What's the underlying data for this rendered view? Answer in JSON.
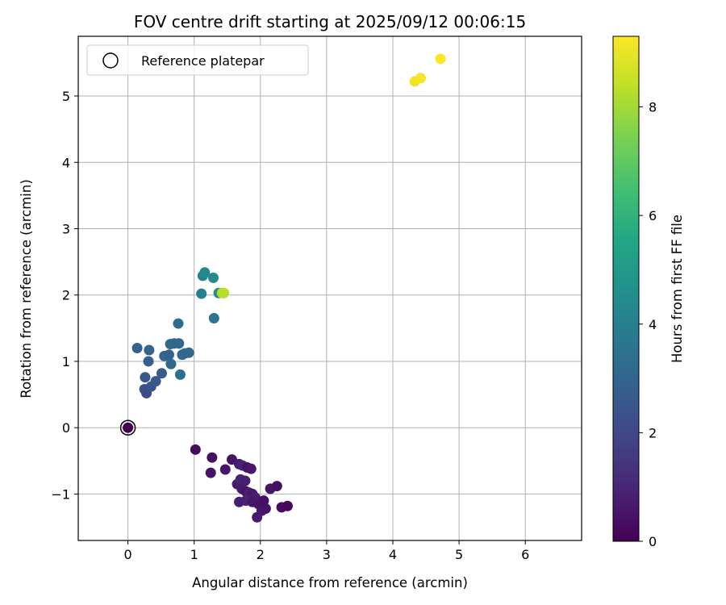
{
  "chart_data": {
    "type": "scatter",
    "title": "FOV centre drift starting at 2025/09/12 00:06:15",
    "xlabel": "Angular distance from reference (arcmin)",
    "ylabel": "Rotation from reference (arcmin)",
    "xlim": [
      -0.75,
      6.85
    ],
    "ylim": [
      -1.7,
      5.9
    ],
    "xticks": [
      0,
      1,
      2,
      3,
      4,
      5,
      6
    ],
    "yticks": [
      -1,
      0,
      1,
      2,
      3,
      4,
      5
    ],
    "grid": true,
    "legend": {
      "entries": [
        "Reference platepar"
      ],
      "position": "upper-left"
    },
    "reference_point": {
      "x": 0,
      "y": 0
    },
    "colorbar": {
      "label": "Hours from first FF file",
      "colormap": "viridis",
      "min": 0,
      "max": 9.3,
      "ticks": [
        0,
        2,
        4,
        6,
        8
      ]
    },
    "series": [
      {
        "points": [
          {
            "x": 0.0,
            "y": 0.0,
            "c": 0.0
          },
          {
            "x": 1.02,
            "y": -0.33,
            "c": 0.3
          },
          {
            "x": 1.27,
            "y": -0.45,
            "c": 0.4
          },
          {
            "x": 1.25,
            "y": -0.68,
            "c": 0.5
          },
          {
            "x": 1.47,
            "y": -0.63,
            "c": 0.6
          },
          {
            "x": 1.57,
            "y": -0.48,
            "c": 0.5
          },
          {
            "x": 1.68,
            "y": -0.55,
            "c": 0.7
          },
          {
            "x": 1.73,
            "y": -0.57,
            "c": 0.9
          },
          {
            "x": 1.8,
            "y": -0.6,
            "c": 0.5
          },
          {
            "x": 1.86,
            "y": -0.62,
            "c": 0.6
          },
          {
            "x": 1.65,
            "y": -0.85,
            "c": 0.7
          },
          {
            "x": 1.7,
            "y": -0.78,
            "c": 0.9
          },
          {
            "x": 1.77,
            "y": -0.8,
            "c": 0.8
          },
          {
            "x": 1.72,
            "y": -0.92,
            "c": 0.7
          },
          {
            "x": 1.78,
            "y": -0.96,
            "c": 0.5
          },
          {
            "x": 1.83,
            "y": -0.98,
            "c": 0.8
          },
          {
            "x": 1.88,
            "y": -1.0,
            "c": 0.6
          },
          {
            "x": 1.92,
            "y": -1.05,
            "c": 0.7
          },
          {
            "x": 1.68,
            "y": -1.12,
            "c": 0.8
          },
          {
            "x": 1.78,
            "y": -1.1,
            "c": 0.9
          },
          {
            "x": 1.88,
            "y": -1.12,
            "c": 0.6
          },
          {
            "x": 1.97,
            "y": -1.15,
            "c": 0.5
          },
          {
            "x": 2.05,
            "y": -1.1,
            "c": 0.4
          },
          {
            "x": 2.02,
            "y": -1.25,
            "c": 0.6
          },
          {
            "x": 2.08,
            "y": -1.22,
            "c": 0.5
          },
          {
            "x": 1.95,
            "y": -1.35,
            "c": 0.7
          },
          {
            "x": 2.15,
            "y": -0.92,
            "c": 0.5
          },
          {
            "x": 2.25,
            "y": -0.88,
            "c": 0.4
          },
          {
            "x": 2.32,
            "y": -1.2,
            "c": 0.3
          },
          {
            "x": 2.41,
            "y": -1.18,
            "c": 0.2
          },
          {
            "x": 0.25,
            "y": 0.58,
            "c": 2.3
          },
          {
            "x": 0.28,
            "y": 0.52,
            "c": 2.1
          },
          {
            "x": 0.35,
            "y": 0.62,
            "c": 2.4
          },
          {
            "x": 0.42,
            "y": 0.7,
            "c": 2.6
          },
          {
            "x": 0.26,
            "y": 0.76,
            "c": 2.5
          },
          {
            "x": 0.51,
            "y": 0.82,
            "c": 2.7
          },
          {
            "x": 0.31,
            "y": 1.0,
            "c": 2.8
          },
          {
            "x": 0.14,
            "y": 1.2,
            "c": 2.9
          },
          {
            "x": 0.32,
            "y": 1.17,
            "c": 3.0
          },
          {
            "x": 0.55,
            "y": 1.08,
            "c": 3.0
          },
          {
            "x": 0.62,
            "y": 1.1,
            "c": 2.9
          },
          {
            "x": 0.65,
            "y": 0.96,
            "c": 3.1
          },
          {
            "x": 0.64,
            "y": 1.26,
            "c": 3.2
          },
          {
            "x": 0.7,
            "y": 1.27,
            "c": 3.0
          },
          {
            "x": 0.77,
            "y": 1.27,
            "c": 3.1
          },
          {
            "x": 0.82,
            "y": 1.1,
            "c": 3.2
          },
          {
            "x": 0.86,
            "y": 1.12,
            "c": 3.0
          },
          {
            "x": 0.92,
            "y": 1.13,
            "c": 3.1
          },
          {
            "x": 0.76,
            "y": 1.57,
            "c": 3.3
          },
          {
            "x": 0.79,
            "y": 0.8,
            "c": 3.4
          },
          {
            "x": 1.3,
            "y": 1.65,
            "c": 3.6
          },
          {
            "x": 1.11,
            "y": 2.02,
            "c": 4.0
          },
          {
            "x": 1.13,
            "y": 2.29,
            "c": 4.2
          },
          {
            "x": 1.16,
            "y": 2.34,
            "c": 4.3
          },
          {
            "x": 1.29,
            "y": 2.26,
            "c": 4.4
          },
          {
            "x": 1.37,
            "y": 2.03,
            "c": 4.5
          },
          {
            "x": 1.42,
            "y": 2.03,
            "c": 8.2
          },
          {
            "x": 1.45,
            "y": 2.03,
            "c": 8.3
          },
          {
            "x": 4.33,
            "y": 5.22,
            "c": 9.1
          },
          {
            "x": 4.42,
            "y": 5.27,
            "c": 9.2
          },
          {
            "x": 4.72,
            "y": 5.56,
            "c": 9.3
          }
        ]
      }
    ]
  }
}
